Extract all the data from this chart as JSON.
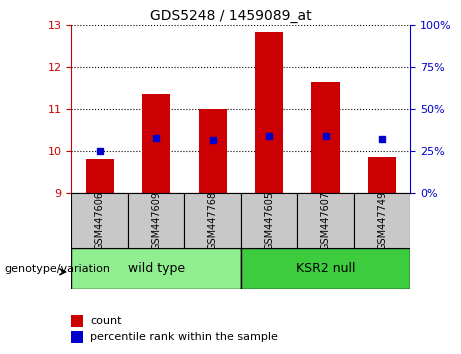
{
  "title": "GDS5248 / 1459089_at",
  "samples": [
    "GSM447606",
    "GSM447609",
    "GSM447768",
    "GSM447605",
    "GSM447607",
    "GSM447749"
  ],
  "red_values": [
    9.8,
    11.35,
    11.0,
    12.82,
    11.65,
    9.85
  ],
  "blue_values": [
    10.0,
    10.3,
    10.25,
    10.35,
    10.35,
    10.28
  ],
  "ylim_left": [
    9,
    13
  ],
  "ylim_right": [
    0,
    100
  ],
  "yticks_left": [
    9,
    10,
    11,
    12,
    13
  ],
  "yticks_right": [
    0,
    25,
    50,
    75,
    100
  ],
  "groups": [
    {
      "label": "wild type",
      "indices": [
        0,
        1,
        2
      ],
      "color": "#90EE90"
    },
    {
      "label": "KSR2 null",
      "indices": [
        3,
        4,
        5
      ],
      "color": "#3DCC3D"
    }
  ],
  "group_label": "genotype/variation",
  "bar_color": "#CC0000",
  "dot_color": "#0000CC",
  "left_axis_color": "#CC0000",
  "right_axis_color": "#0000CC",
  "bar_width": 0.5,
  "grid_color": "#000000",
  "sample_box_color": "#C8C8C8",
  "legend_count_color": "#CC0000",
  "legend_percentile_color": "#0000CC"
}
